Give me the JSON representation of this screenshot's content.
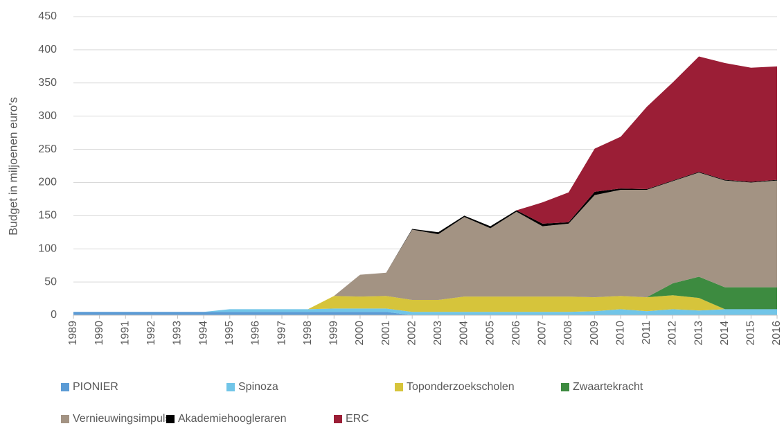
{
  "chart_data": {
    "type": "stacked-area",
    "y_label": "Budget in miljoenen euro's",
    "x": [
      1989,
      1990,
      1991,
      1992,
      1993,
      1994,
      1995,
      1996,
      1997,
      1998,
      1999,
      2000,
      2001,
      2002,
      2003,
      2004,
      2005,
      2006,
      2007,
      2008,
      2009,
      2010,
      2011,
      2012,
      2013,
      2014,
      2015,
      2016
    ],
    "xticks": [
      1989,
      1990,
      1991,
      1992,
      1993,
      1994,
      1995,
      1996,
      1997,
      1998,
      1999,
      2000,
      2001,
      2002,
      2003,
      2004,
      2005,
      2006,
      2007,
      2008,
      2009,
      2010,
      2011,
      2012,
      2013,
      2014,
      2015,
      2016
    ],
    "xlim": [
      1989,
      2016
    ],
    "ylim": [
      0,
      450
    ],
    "yticks": [
      0,
      50,
      100,
      150,
      200,
      250,
      300,
      350,
      400,
      450
    ],
    "grid": true,
    "legend": "bottom",
    "series": [
      {
        "name": "PIONIER",
        "color": "#5b9bd5",
        "values": [
          5,
          5,
          5,
          5,
          5,
          5,
          5,
          5,
          5,
          5,
          5,
          5,
          5,
          0,
          0,
          0,
          0,
          0,
          0,
          0,
          0,
          0,
          0,
          0,
          0,
          0,
          0,
          0
        ]
      },
      {
        "name": "Spinoza",
        "color": "#71c5e8",
        "values": [
          0,
          0,
          0,
          0,
          0,
          0,
          4,
          4,
          4,
          4,
          5,
          5,
          5,
          5,
          5,
          5,
          5,
          5,
          5,
          5,
          6,
          9,
          6,
          9,
          7,
          9,
          9,
          9
        ]
      },
      {
        "name": "Toponderzoekscholen",
        "color": "#d6c43b",
        "values": [
          0,
          0,
          0,
          0,
          0,
          0,
          0,
          0,
          0,
          0,
          19,
          18,
          19,
          18,
          18,
          23,
          23,
          23,
          23,
          23,
          21,
          20,
          21,
          21,
          19,
          0,
          0,
          0
        ]
      },
      {
        "name": "Zwaartekracht",
        "color": "#3d8b40",
        "values": [
          0,
          0,
          0,
          0,
          0,
          0,
          0,
          0,
          0,
          0,
          0,
          0,
          0,
          0,
          0,
          0,
          0,
          0,
          0,
          0,
          0,
          0,
          0,
          18,
          32,
          33,
          33,
          33
        ]
      },
      {
        "name": "Vernieuwingsimpuls",
        "color": "#a39383",
        "values": [
          0,
          0,
          0,
          0,
          0,
          0,
          0,
          0,
          0,
          0,
          0,
          33,
          35,
          106,
          99,
          120,
          103,
          128,
          106,
          110,
          154,
          160,
          162,
          154,
          157,
          161,
          158,
          161
        ]
      },
      {
        "name": "Akademiehoogleraren",
        "color": "#000000",
        "values": [
          0,
          0,
          0,
          0,
          0,
          0,
          0,
          0,
          0,
          0,
          0,
          0,
          0,
          1,
          3,
          2,
          3,
          2,
          4,
          2,
          5,
          2,
          1,
          1,
          1,
          1,
          1,
          1
        ]
      },
      {
        "name": "ERC",
        "color": "#9b1e36",
        "values": [
          0,
          0,
          0,
          0,
          0,
          0,
          0,
          0,
          0,
          0,
          0,
          0,
          0,
          0,
          0,
          0,
          0,
          0,
          32,
          45,
          65,
          78,
          124,
          148,
          174,
          176,
          172,
          171
        ]
      }
    ]
  }
}
